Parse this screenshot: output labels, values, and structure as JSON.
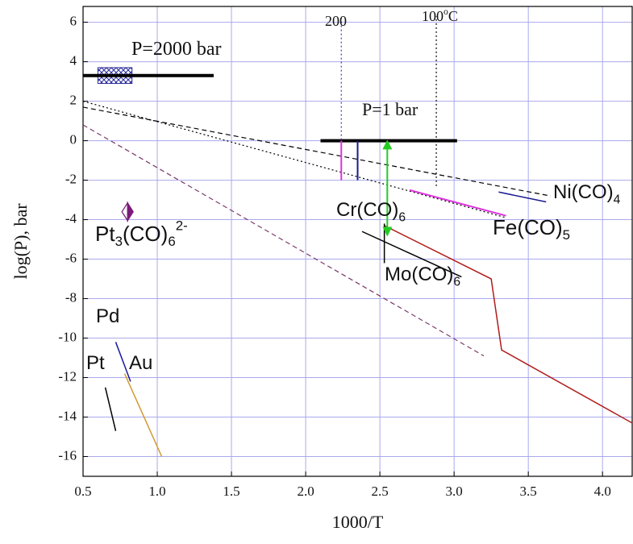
{
  "chart_data": {
    "type": "line",
    "xlabel": "log(P), bar",
    "ylabel_note": null,
    "x_axis_label": "1000/T",
    "xlim": [
      0.5,
      4.2
    ],
    "ylim": [
      -17,
      6.8
    ],
    "xticks": [
      0.5,
      {
        "value": 1,
        "label": "1.0"
      },
      1.5,
      {
        "value": 2,
        "label": "2.0"
      },
      2.5,
      {
        "value": 3,
        "label": "3.0"
      },
      3.5,
      {
        "value": 4,
        "label": "4.0"
      }
    ],
    "yticks": [
      6,
      4,
      2,
      0,
      -2,
      -4,
      -6,
      -8,
      -10,
      -12,
      -14,
      -16
    ],
    "grid": true,
    "grid_color": "#a9a9ee",
    "series": [
      {
        "color": "#000000",
        "width": 4,
        "x": [
          0.5,
          1.38
        ],
        "values": [
          3.3,
          3.3
        ]
      },
      {
        "color": "#000000",
        "width": 4,
        "x": [
          2.1,
          3.02
        ],
        "values": [
          0,
          0
        ]
      },
      {
        "color": "#3a3aa8",
        "width": 1.2,
        "dash": "dotted",
        "x": [
          2.24,
          2.24
        ],
        "values": [
          -2,
          6.3
        ]
      },
      {
        "color": "#000000",
        "width": 1.2,
        "dash": "dotted",
        "x": [
          2.88,
          2.88
        ],
        "values": [
          -2.3,
          6.3
        ]
      },
      {
        "color": "#000000",
        "width": 1.2,
        "dash": "dashed",
        "x": [
          0.5,
          3.65
        ],
        "values": [
          1.7,
          -2.8
        ]
      },
      {
        "color": "#000000",
        "width": 1.2,
        "dash": "dotted",
        "x": [
          0.5,
          3.35
        ],
        "values": [
          2.0,
          -3.9
        ]
      },
      {
        "color": "#7a3a6a",
        "width": 1.2,
        "dash": "dashed",
        "x": [
          0.5,
          3.2
        ],
        "values": [
          0.8,
          -10.9
        ]
      },
      {
        "color": "#1a1a90",
        "width": 1.5,
        "x": [
          3.3,
          3.62
        ],
        "values": [
          -2.6,
          -3.1
        ]
      },
      {
        "color": "#dd33dd",
        "width": 2,
        "x": [
          2.7,
          3.35
        ],
        "values": [
          -2.5,
          -3.8
        ]
      },
      {
        "color": "#b01c1c",
        "width": 1.5,
        "x": [
          2.53,
          3.25,
          3.32,
          4.2
        ],
        "values": [
          -4.3,
          -7.0,
          -10.6,
          -14.3
        ]
      },
      {
        "color": "#000000",
        "width": 1.5,
        "x": [
          2.38,
          3.05
        ],
        "values": [
          -4.6,
          -6.9
        ]
      },
      {
        "color": "#000000",
        "width": 1.5,
        "x": [
          2.53,
          2.53
        ],
        "values": [
          -4.2,
          -6.2
        ]
      },
      {
        "color": "#dd33dd",
        "width": 2,
        "x": [
          2.24,
          2.24
        ],
        "values": [
          0,
          -2.0
        ]
      },
      {
        "color": "#1a1a90",
        "width": 2,
        "x": [
          2.35,
          2.35
        ],
        "values": [
          0,
          -2.0
        ]
      },
      {
        "color": "#22cc22",
        "width": 2,
        "arrow": "both",
        "x": [
          2.55,
          2.55
        ],
        "values": [
          -4.8,
          0
        ]
      },
      {
        "color": "#1a1aa0",
        "width": 1.5,
        "x": [
          0.72,
          0.82
        ],
        "values": [
          -10.2,
          -12.2
        ]
      },
      {
        "color": "#000000",
        "width": 1.5,
        "x": [
          0.65,
          0.72
        ],
        "values": [
          -12.5,
          -14.7
        ]
      },
      {
        "color": "#d09a30",
        "width": 1.5,
        "x": [
          0.78,
          1.03
        ],
        "values": [
          -11.8,
          -16
        ]
      }
    ],
    "regions": [
      {
        "color": "#2a2a9a",
        "x": [
          0.6,
          0.83
        ],
        "y": [
          2.9,
          3.7
        ]
      }
    ],
    "points": [
      {
        "x": 0.8,
        "y": -3.6,
        "color": "#7a1a7a"
      }
    ],
    "annotations": [
      {
        "parts": [
          {
            "text": "P=2000 bar"
          }
        ]
      },
      {
        "parts": [
          {
            "text": "P=1 bar"
          }
        ]
      },
      {
        "parts": [
          {
            "text": "200"
          }
        ]
      },
      {
        "parts": [
          {
            "text": "100"
          },
          {
            "text": "o",
            "shift": "sup"
          },
          {
            "text": "C"
          }
        ]
      },
      {
        "parts": [
          {
            "text": "Ni(CO)"
          },
          {
            "text": "4",
            "shift": "sub"
          }
        ]
      },
      {
        "parts": [
          {
            "text": "Fe(CO)"
          },
          {
            "text": "5",
            "shift": "sub"
          }
        ]
      },
      {
        "parts": [
          {
            "text": "Cr(CO)"
          },
          {
            "text": "6",
            "shift": "sub"
          }
        ]
      },
      {
        "parts": [
          {
            "text": "Mo(CO)"
          },
          {
            "text": "6",
            "shift": "sub"
          }
        ]
      },
      {
        "parts": [
          {
            "text": "Pt"
          },
          {
            "text": "3",
            "shift": "sub"
          },
          {
            "text": "(CO)"
          },
          {
            "text": "6",
            "shift": "sub"
          },
          {
            "text": "2-",
            "shift": "sup"
          }
        ]
      },
      {
        "parts": [
          {
            "text": "Pd"
          }
        ]
      },
      {
        "parts": [
          {
            "text": "Pt"
          }
        ]
      },
      {
        "parts": [
          {
            "text": "Au"
          }
        ]
      }
    ]
  }
}
